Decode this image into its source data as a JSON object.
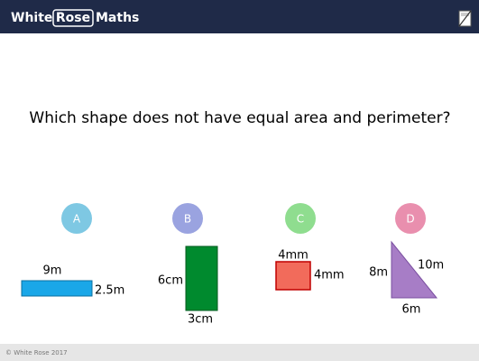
{
  "header": {
    "logo": {
      "first": "White",
      "middle": "Rose",
      "last": "Maths"
    }
  },
  "question": "Which shape does not have equal area and perimeter?",
  "options": [
    {
      "letter": "A",
      "labels": [
        "9m",
        "2.5m"
      ]
    },
    {
      "letter": "B",
      "labels": [
        "6cm",
        "3cm"
      ]
    },
    {
      "letter": "C",
      "labels": [
        "4mm",
        "4mm"
      ]
    },
    {
      "letter": "D",
      "labels": [
        "8m",
        "10m",
        "6m"
      ]
    }
  ],
  "footer": "© White Rose 2017"
}
